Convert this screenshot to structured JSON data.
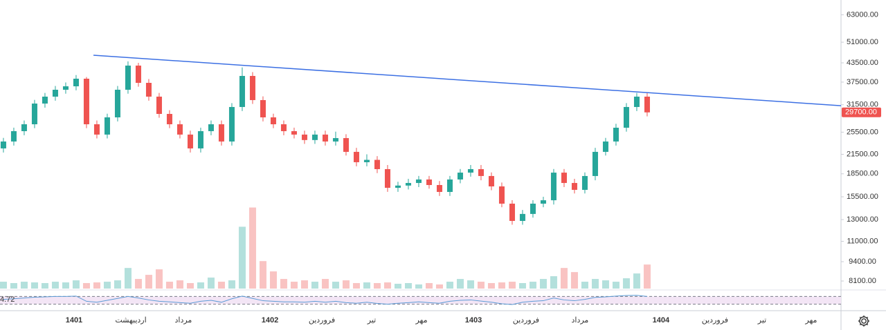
{
  "chart_data": {
    "type": "candlestick",
    "log_scale": true,
    "up_color": "#26a69a",
    "down_color": "#ef5350",
    "xlim": [
      -0.33,
      80.67
    ],
    "ylim": [
      7560,
      70600
    ],
    "yticks": [
      {
        "value": 63000,
        "label": "63000.00"
      },
      {
        "value": 51000,
        "label": "51000.00"
      },
      {
        "value": 43500,
        "label": "43500.00"
      },
      {
        "value": 37500,
        "label": "37500.00"
      },
      {
        "value": 31500,
        "label": "31500.00"
      },
      {
        "value": 25500,
        "label": "25500.00"
      },
      {
        "value": 21500,
        "label": "21500.00"
      },
      {
        "value": 18500,
        "label": "18500.00"
      },
      {
        "value": 15500,
        "label": "15500.00"
      },
      {
        "value": 13000,
        "label": "13000.00"
      },
      {
        "value": 11000,
        "label": "11000.00"
      },
      {
        "value": 9400,
        "label": "9400.00"
      },
      {
        "value": 8100,
        "label": "8100.00"
      }
    ],
    "xticks": [
      {
        "value": 6.8,
        "label": "1401"
      },
      {
        "value": 12.27,
        "label": "اردیبهشت"
      },
      {
        "value": 17.33,
        "label": "مرداد"
      },
      {
        "value": 25.67,
        "label": "1402"
      },
      {
        "value": 30.67,
        "label": "فروردین"
      },
      {
        "value": 35.47,
        "label": "تیر"
      },
      {
        "value": 40.27,
        "label": "مهر"
      },
      {
        "value": 45.27,
        "label": "1403"
      },
      {
        "value": 50.33,
        "label": "فروردین"
      },
      {
        "value": 55.53,
        "label": "مرداد"
      },
      {
        "value": 63.33,
        "label": "1404"
      },
      {
        "value": 68.53,
        "label": "فروردین"
      },
      {
        "value": 73.07,
        "label": "تیر"
      },
      {
        "value": 77.8,
        "label": "مهر"
      }
    ],
    "open": [
      22500,
      23730,
      25700,
      27100,
      31790,
      33530,
      35360,
      36310,
      38500,
      27100,
      25030,
      28580,
      35360,
      42590,
      37290,
      33530,
      29350,
      27100,
      25030,
      22500,
      25700,
      27100,
      23730,
      30960,
      39330,
      32650,
      28580,
      27100,
      25700,
      25030,
      24000,
      25030,
      23730,
      24360,
      21910,
      20230,
      20600,
      19180,
      16610,
      16900,
      17240,
      17710,
      16970,
      16090,
      17710,
      18670,
      19180,
      18190,
      16790,
      14700,
      12870,
      13580,
      14700,
      15090,
      18670,
      17240,
      16350,
      18190,
      21910,
      23730,
      26390,
      30960,
      33530
    ],
    "high": [
      24400,
      26400,
      27900,
      32700,
      34500,
      36400,
      37400,
      39600,
      39000,
      27900,
      29400,
      36400,
      44000,
      43500,
      38400,
      34500,
      30200,
      27900,
      25800,
      26400,
      27900,
      27900,
      31900,
      42000,
      40500,
      33600,
      29400,
      27900,
      26400,
      25800,
      25800,
      25800,
      25600,
      25100,
      22600,
      21500,
      21200,
      19800,
      17400,
      17800,
      18200,
      18200,
      17500,
      18200,
      19200,
      19800,
      19800,
      18700,
      17300,
      15100,
      14000,
      15100,
      15500,
      19200,
      19200,
      17800,
      18700,
      22600,
      24400,
      27200,
      31900,
      34500,
      34500
    ],
    "low": [
      21800,
      23000,
      24900,
      26300,
      30800,
      32500,
      34300,
      35200,
      26300,
      24300,
      24300,
      27700,
      34300,
      36200,
      32500,
      28500,
      26300,
      24300,
      21800,
      21800,
      24900,
      23000,
      23000,
      30000,
      31700,
      27700,
      26300,
      24900,
      24300,
      23300,
      23300,
      23000,
      23000,
      21300,
      19600,
      19600,
      18600,
      16100,
      16100,
      16400,
      16700,
      16500,
      15600,
      15600,
      17200,
      18100,
      17600,
      16300,
      14300,
      12500,
      12500,
      13200,
      14300,
      14600,
      16700,
      15900,
      15900,
      17600,
      21300,
      23000,
      25600,
      30000,
      28800
    ],
    "close": [
      23730,
      25700,
      27100,
      31790,
      33530,
      35360,
      36310,
      38500,
      27100,
      25030,
      28580,
      35360,
      42590,
      37290,
      33530,
      29350,
      27100,
      25030,
      22500,
      25700,
      27100,
      23730,
      30960,
      39330,
      32650,
      28580,
      27100,
      25700,
      25030,
      24000,
      25030,
      23730,
      24360,
      21910,
      20230,
      20600,
      19180,
      16610,
      16900,
      17240,
      17710,
      16970,
      16090,
      17710,
      18670,
      19180,
      18190,
      16790,
      14700,
      12870,
      13580,
      14700,
      15090,
      18670,
      17240,
      16350,
      18190,
      21910,
      23730,
      26390,
      30960,
      33530,
      29700
    ],
    "volume": [
      10,
      8,
      10,
      9,
      8,
      10,
      9,
      12,
      8,
      9,
      10,
      12,
      30,
      14,
      20,
      28,
      10,
      12,
      8,
      9,
      16,
      10,
      12,
      90,
      118,
      40,
      25,
      14,
      10,
      12,
      10,
      14,
      10,
      12,
      8,
      9,
      8,
      9,
      7,
      8,
      6,
      8,
      6,
      10,
      14,
      12,
      10,
      8,
      9,
      10,
      8,
      10,
      14,
      18,
      30,
      24,
      10,
      14,
      12,
      10,
      15,
      22,
      35
    ],
    "volume_ylim": [
      0,
      420
    ],
    "last_price_label": "29700.00",
    "trendline": {
      "color": "#3b6fe3",
      "x": [
        8.67,
        80.67
      ],
      "y": [
        46130,
        31270
      ]
    },
    "indicator": {
      "label": "4.72",
      "color": "#5b9bd5",
      "ylim": [
        0,
        100
      ],
      "levels": [
        70,
        30
      ],
      "values": [
        55,
        58,
        62,
        66,
        68,
        70,
        70,
        72,
        45,
        40,
        50,
        60,
        70,
        62,
        52,
        45,
        42,
        38,
        35,
        45,
        50,
        40,
        58,
        72,
        60,
        48,
        45,
        42,
        42,
        40,
        45,
        40,
        45,
        38,
        35,
        40,
        34,
        30,
        35,
        38,
        42,
        38,
        35,
        45,
        50,
        52,
        46,
        40,
        32,
        28,
        40,
        45,
        48,
        62,
        52,
        48,
        55,
        65,
        68,
        72,
        75,
        76,
        70
      ]
    }
  }
}
